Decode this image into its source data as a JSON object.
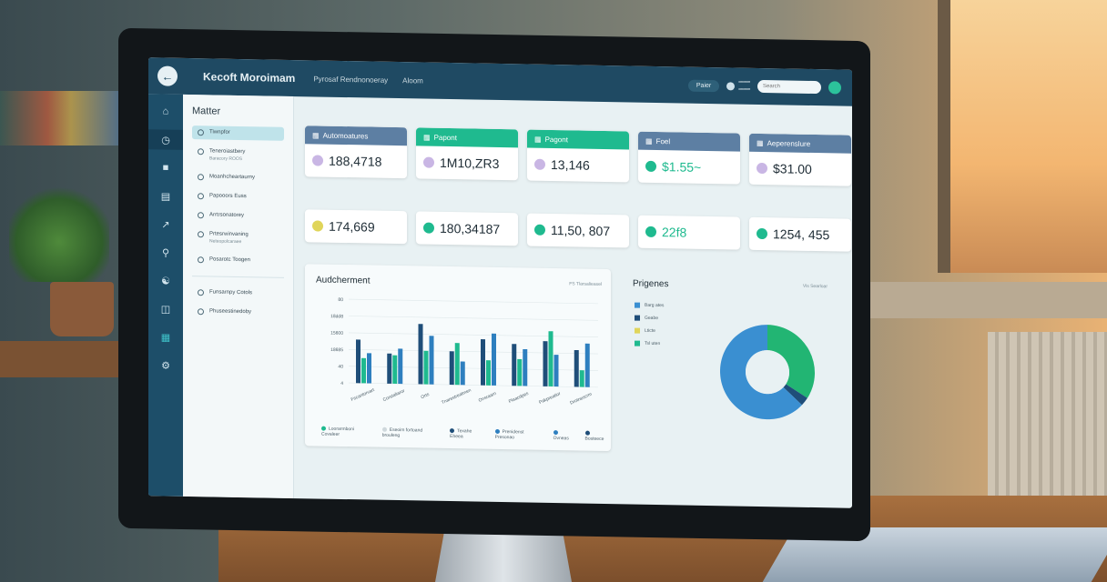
{
  "topbar": {
    "app_title": "Kecoft Moroimam",
    "crumb": "Pyrosaf Rendnonoeray",
    "crumb2": "Aloom",
    "action_button": "Paier",
    "search_placeholder": "Search"
  },
  "sidebar": {
    "title": "Matter",
    "items": [
      {
        "label": "Tiwnpfor"
      },
      {
        "label": "Teneroiastbery",
        "sub": "Baracory ROOS"
      },
      {
        "label": "Moanhcheartaurny"
      },
      {
        "label": "Papooors Euss"
      },
      {
        "label": "Arrtrsonatorey"
      },
      {
        "label": "Prtesrwinvaning",
        "sub": "Neteopolcaraee"
      },
      {
        "label": "Posarotc Toogen"
      },
      {
        "label": "Funsarnpy Cotols"
      },
      {
        "label": "Phuseestinedoby"
      }
    ]
  },
  "kpis_top": [
    {
      "header": "Automoatures",
      "value": "188,4718",
      "color": "#5d7fa3"
    },
    {
      "header": "Papont",
      "value": "1M10,ZR3",
      "color": "#1fba8f"
    },
    {
      "header": "Pagont",
      "value": "13,146",
      "color": "#1fba8f"
    },
    {
      "header": "Foel",
      "value": "$1.55~",
      "color": "#5d7fa3",
      "value_color": "#1fba8f"
    },
    {
      "header": "Aeperenslure",
      "value": "$31.00",
      "color": "#5d7fa3"
    }
  ],
  "kpis_bottom": [
    {
      "value": "174,669",
      "icon_color": "#e0d55a"
    },
    {
      "value": "180,34187",
      "icon_color": "#1fba8f"
    },
    {
      "value": "11,50, 807",
      "icon_color": "#1fba8f"
    },
    {
      "value": "22f8",
      "icon_color": "#1fba8f",
      "value_color": "#1fba8f"
    },
    {
      "value": "1254, 455",
      "icon_color": "#1fba8f"
    }
  ],
  "chart": {
    "title": "Audcherment",
    "meta": "FS Tlarsalieasel",
    "legend": [
      {
        "label": "Loorarmboni Covaleer",
        "color": "#1fba8f"
      },
      {
        "label": "Eseoim fortoand brouleng",
        "color": "#cfd8dc"
      },
      {
        "label": "Texahe Eheea",
        "color": "#1f4e79"
      },
      {
        "label": "Prenidenst Presonao",
        "color": "#2e7fbf"
      },
      {
        "label": "Ovneas",
        "color": "#2e7fbf"
      },
      {
        "label": "Bosteece",
        "color": "#1f4e79"
      }
    ]
  },
  "chart_data": {
    "type": "bar",
    "title": "Audcherment",
    "yticks": [
      "80",
      "18dd8",
      "15600",
      "18685",
      "40",
      "4"
    ],
    "categories": [
      "Fscantorvart",
      "Corstaliaror",
      "Orts",
      "Tnarestreatmen",
      "Onsraarn",
      "Plaacdpes",
      "Pakpreatior",
      "Drotnescrm"
    ],
    "series": [
      {
        "name": "Texahe Eheea",
        "values": [
          0.52,
          0.36,
          0.72,
          0.4,
          0.55,
          0.5,
          0.54,
          0.44
        ],
        "color": "#1f4e79"
      },
      {
        "name": "Loorarmboni Covaleer",
        "values": [
          0.3,
          0.34,
          0.4,
          0.5,
          0.3,
          0.32,
          0.66,
          0.2
        ],
        "color": "#1fba8f"
      },
      {
        "name": "Prenidenst Presonao",
        "values": [
          0.36,
          0.42,
          0.58,
          0.28,
          0.62,
          0.44,
          0.38,
          0.52
        ],
        "color": "#2e7fbf"
      }
    ]
  },
  "pie": {
    "title": "Prigenes",
    "meta": "Vis Searloar",
    "legend": [
      {
        "label": "Barg ates",
        "color": "#3a8fd1"
      },
      {
        "label": "Geabe",
        "color": "#1f4e79"
      },
      {
        "label": "Lticte",
        "color": "#e0d55a"
      },
      {
        "label": "Tsl uten",
        "color": "#1fba8f"
      }
    ]
  },
  "pie_data": {
    "type": "pie",
    "slices": [
      {
        "label": "Tsl uten",
        "value": 0.34,
        "color": "#22b573"
      },
      {
        "label": "Geabe",
        "value": 0.03,
        "color": "#1f4e79"
      },
      {
        "label": "Barg ates",
        "value": 0.63,
        "color": "#3a8fd1"
      }
    ]
  }
}
